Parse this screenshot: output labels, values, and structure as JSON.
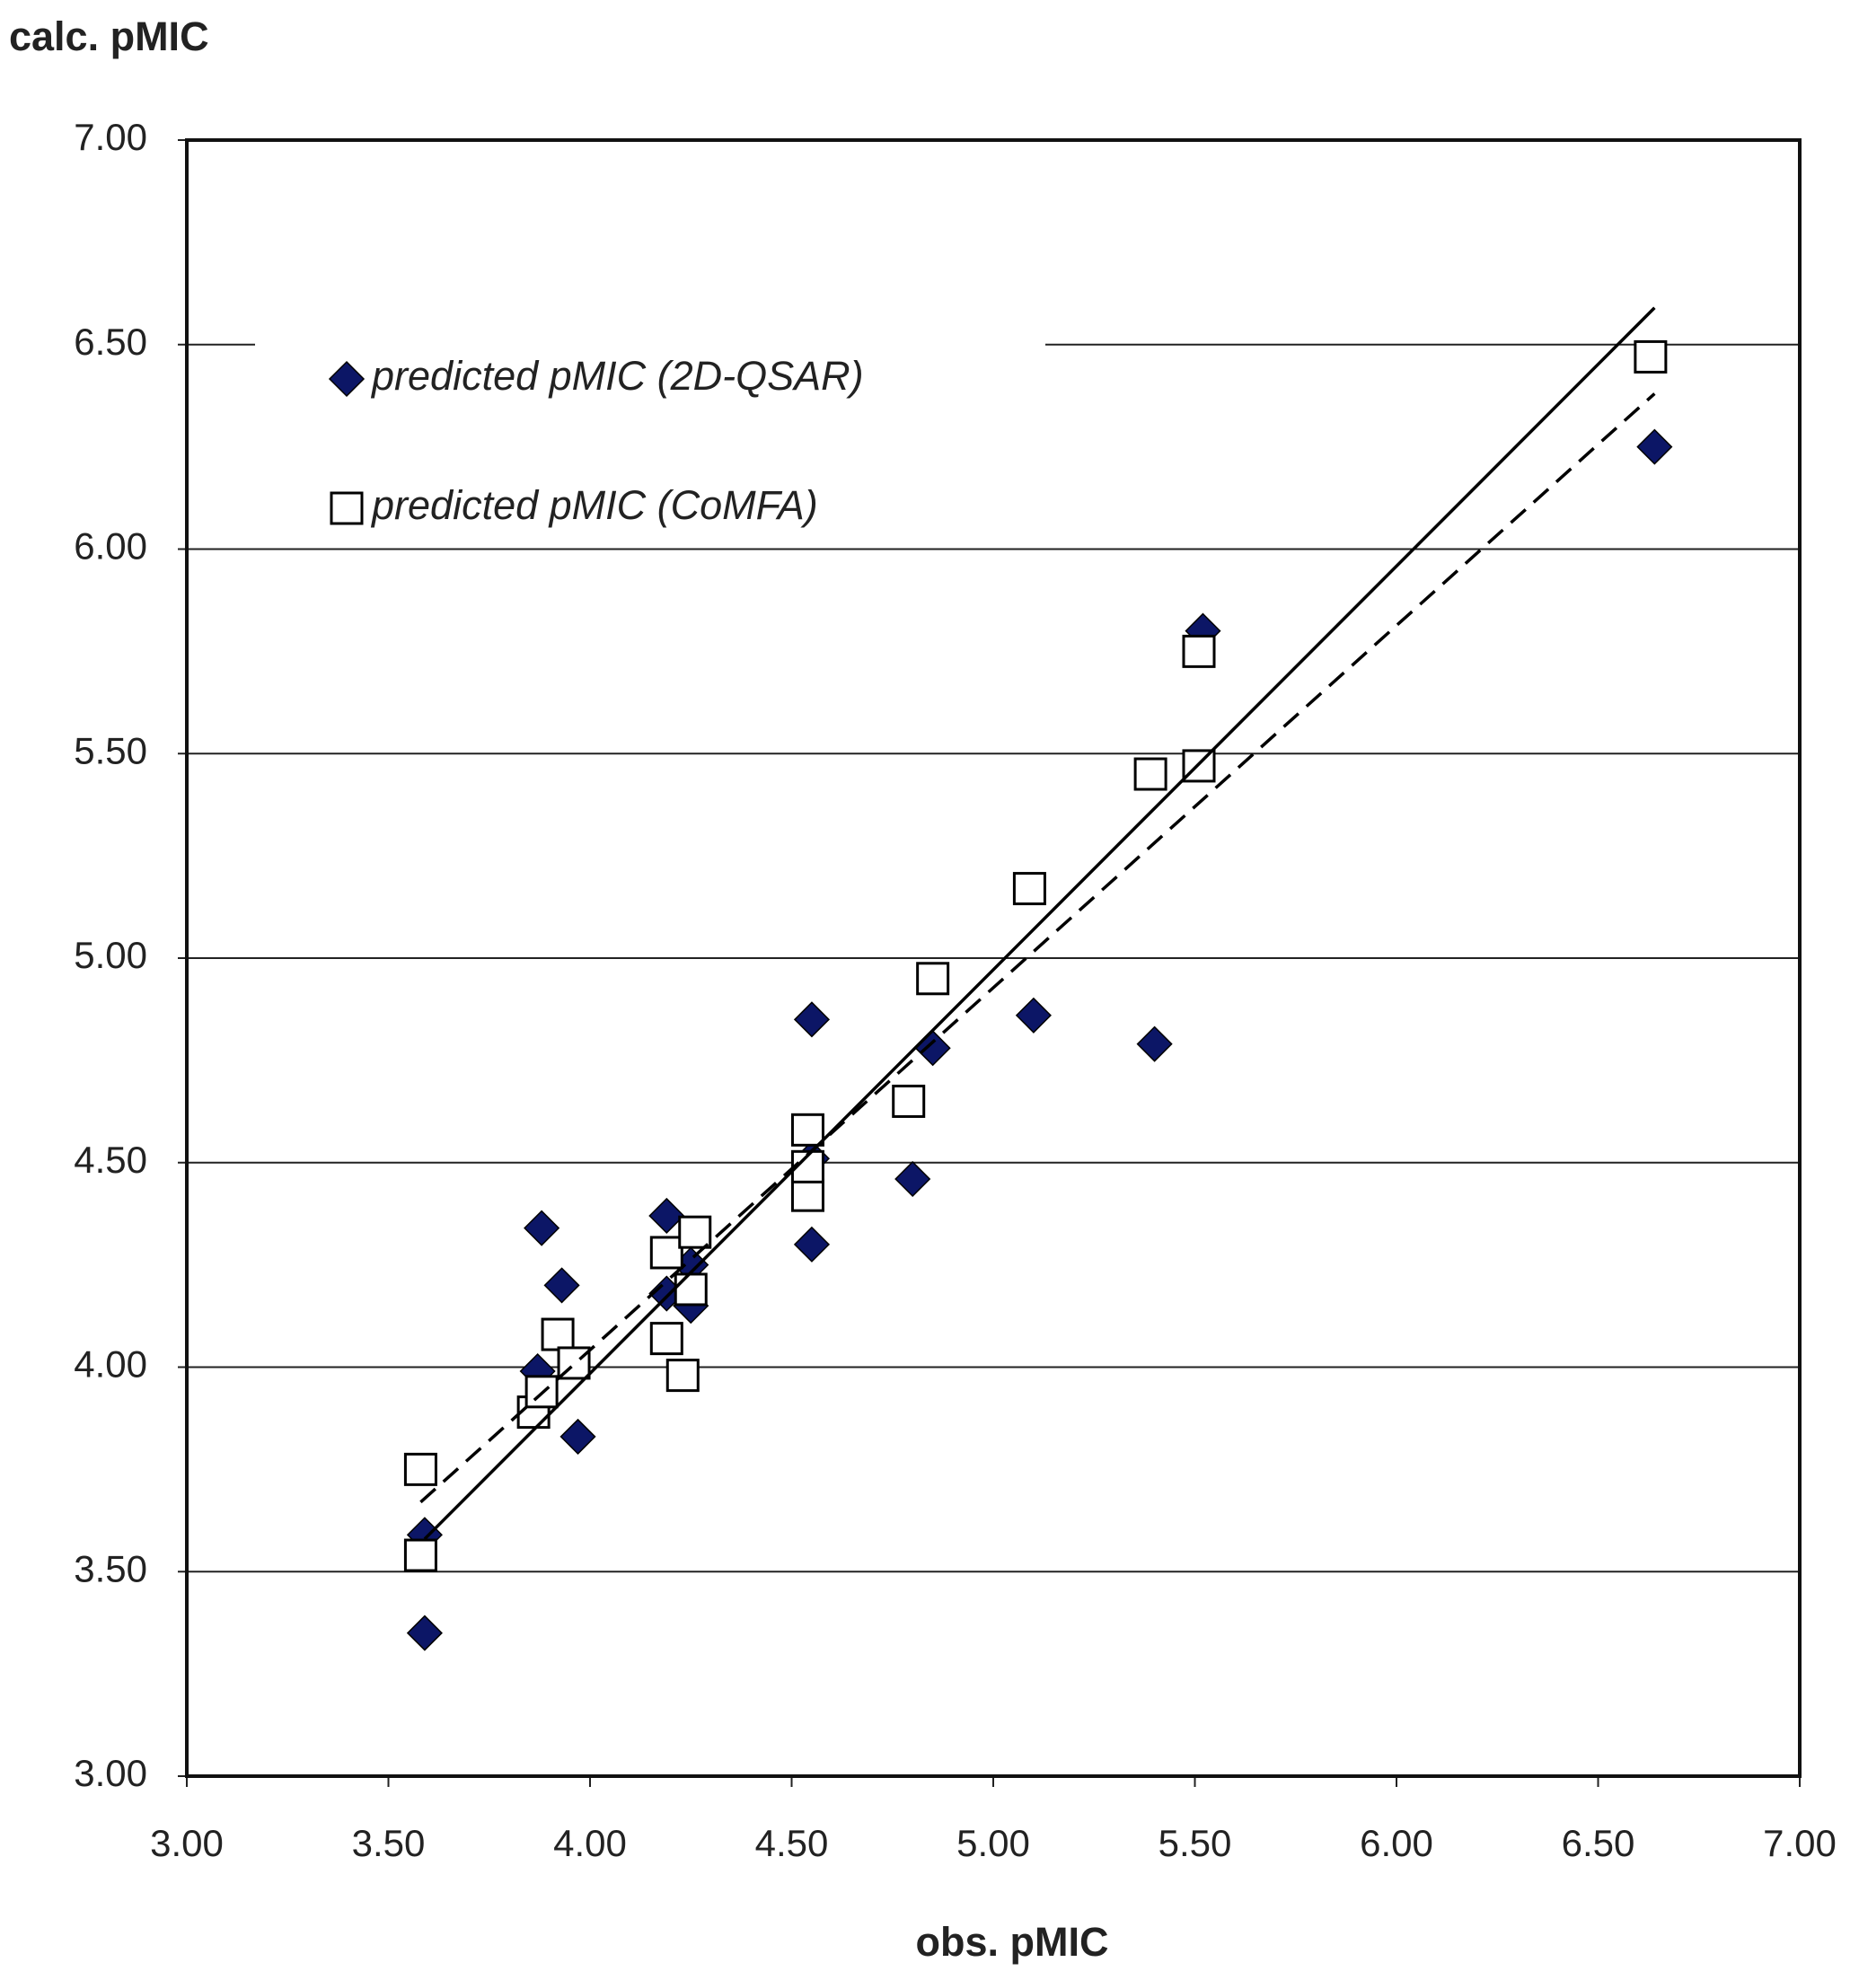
{
  "chart_data": {
    "type": "scatter",
    "y_label": "calc. pMIC",
    "x_label": "obs. pMIC",
    "xlim": [
      3,
      7
    ],
    "ylim": [
      3,
      7
    ],
    "xticks": [
      {
        "value": 3,
        "label": "3.00"
      },
      {
        "value": 3.5,
        "label": "3.50"
      },
      {
        "value": 4,
        "label": "4.00"
      },
      {
        "value": 4.5,
        "label": "4.50"
      },
      {
        "value": 5,
        "label": "5.00"
      },
      {
        "value": 5.5,
        "label": "5.50"
      },
      {
        "value": 6,
        "label": "6.00"
      },
      {
        "value": 6.5,
        "label": "6.50"
      },
      {
        "value": 7,
        "label": "7.00"
      }
    ],
    "yticks": [
      {
        "value": 3,
        "label": "3.00"
      },
      {
        "value": 3.5,
        "label": "3.50"
      },
      {
        "value": 4,
        "label": "4.00"
      },
      {
        "value": 4.5,
        "label": "4.50"
      },
      {
        "value": 5,
        "label": "5.00"
      },
      {
        "value": 5.5,
        "label": "5.50"
      },
      {
        "value": 6,
        "label": "6.00"
      },
      {
        "value": 6.5,
        "label": "6.50"
      },
      {
        "value": 7,
        "label": "7.00"
      }
    ],
    "grid": true,
    "legend": "upper left",
    "series": [
      {
        "name": "predicted pMIC (2D-QSAR)",
        "marker": "diamond",
        "color": "#0c1666",
        "x": [
          3.59,
          3.59,
          3.88,
          3.93,
          3.87,
          3.97,
          4.19,
          4.19,
          4.25,
          4.25,
          4.55,
          4.55,
          4.55,
          4.8,
          4.85,
          5.1,
          5.4,
          5.52,
          6.64
        ],
        "values": [
          3.35,
          3.59,
          4.34,
          4.2,
          3.99,
          3.83,
          4.37,
          4.18,
          4.15,
          4.25,
          4.85,
          4.3,
          4.51,
          4.46,
          4.78,
          4.86,
          4.79,
          5.8,
          6.25
        ]
      },
      {
        "name": "predicted pMIC (CoMFA)",
        "marker": "square",
        "color": "#000000",
        "x": [
          3.58,
          3.58,
          3.86,
          3.88,
          3.92,
          3.96,
          4.19,
          4.19,
          4.23,
          4.26,
          4.25,
          4.54,
          4.54,
          4.54,
          4.79,
          4.85,
          5.09,
          5.39,
          5.51,
          5.51,
          6.63
        ],
        "values": [
          3.75,
          3.54,
          3.89,
          3.94,
          4.08,
          4.01,
          4.07,
          4.28,
          3.98,
          4.33,
          4.19,
          4.58,
          4.42,
          4.49,
          4.65,
          4.95,
          5.17,
          5.45,
          5.47,
          5.75,
          6.47
        ]
      }
    ],
    "lines": [
      {
        "style": "solid",
        "color": "#000000",
        "x": [
          3.59,
          6.64
        ],
        "values": [
          3.58,
          6.59
        ]
      },
      {
        "style": "dashed",
        "color": "#000000",
        "x": [
          3.58,
          6.64
        ],
        "values": [
          3.67,
          6.38
        ]
      }
    ]
  }
}
